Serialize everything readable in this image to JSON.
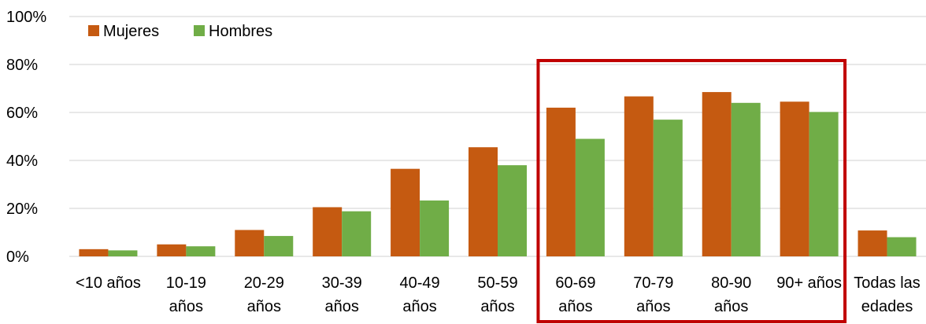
{
  "chart_data": {
    "type": "bar",
    "categories": [
      [
        "<10 años"
      ],
      [
        "10-19",
        "años"
      ],
      [
        "20-29",
        "años"
      ],
      [
        "30-39",
        "años"
      ],
      [
        "40-49",
        "años"
      ],
      [
        "50-59",
        "años"
      ],
      [
        "60-69",
        "años"
      ],
      [
        "70-79",
        "años"
      ],
      [
        "80-90",
        "años"
      ],
      [
        "90+ años"
      ],
      [
        "Todas las",
        "edades"
      ]
    ],
    "series": [
      {
        "name": "Mujeres",
        "color": "#C55A11",
        "values": [
          3,
          5,
          11,
          20.5,
          36.5,
          45.5,
          62,
          66.7,
          68.5,
          64.5,
          10.8
        ]
      },
      {
        "name": "Hombres",
        "color": "#70AD47",
        "values": [
          2.5,
          4.2,
          8.5,
          18.8,
          23.3,
          38,
          49,
          57,
          64,
          60.2,
          8
        ]
      }
    ],
    "y_ticks": [
      "0%",
      "20%",
      "40%",
      "60%",
      "80%",
      "100%"
    ],
    "ylim": [
      0,
      100
    ],
    "title": "",
    "xlabel": "",
    "ylabel": "",
    "grid": true,
    "legend": "top-left",
    "highlight": {
      "from_category": 6,
      "to_category": 9,
      "color": "#C00000"
    }
  }
}
